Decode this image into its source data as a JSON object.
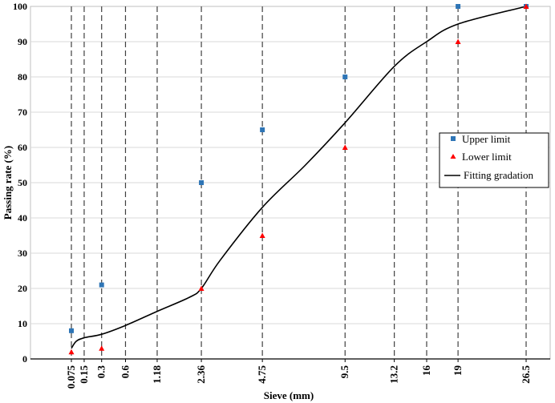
{
  "chart_data": {
    "type": "scatter",
    "xlabel": "Sieve (mm)",
    "ylabel": "Passing rate (%)",
    "ylim": [
      0,
      100
    ],
    "yticks": [
      0,
      10,
      20,
      30,
      40,
      50,
      60,
      70,
      80,
      90,
      100
    ],
    "x_scale": "power-0.45",
    "sieves": [
      "0.075",
      "0.15",
      "0.3",
      "0.6",
      "1.18",
      "2.36",
      "4.75",
      "9.5",
      "13.2",
      "16",
      "19",
      "26.5"
    ],
    "sieve_values": [
      0.075,
      0.15,
      0.3,
      0.6,
      1.18,
      2.36,
      4.75,
      9.5,
      13.2,
      16,
      19,
      26.5
    ],
    "grid": "vertical dashed lines at sieves, horizontal light gridlines",
    "legend_position": "right",
    "series": [
      {
        "name": "Upper limit",
        "marker": "square",
        "color": "#2e75b6",
        "x": [
          0.075,
          0.3,
          2.36,
          4.75,
          9.5,
          19,
          26.5
        ],
        "y": [
          8,
          21,
          50,
          65,
          80,
          100,
          100
        ]
      },
      {
        "name": "Lower limit",
        "marker": "triangle",
        "color": "#ff0000",
        "x": [
          0.075,
          0.3,
          2.36,
          4.75,
          9.5,
          19,
          26.5
        ],
        "y": [
          2,
          3,
          20,
          35,
          60,
          90,
          100
        ]
      },
      {
        "name": "Fitting gradation",
        "marker": "line",
        "color": "#000000",
        "x": [
          0.075,
          0.1,
          0.15,
          0.3,
          0.6,
          1.18,
          2.0,
          2.36,
          3.0,
          4.75,
          7.0,
          9.5,
          13.2,
          16,
          19,
          26.5
        ],
        "y": [
          3,
          5,
          6,
          7,
          9.5,
          13.5,
          17.5,
          20,
          28,
          43,
          55,
          67,
          83,
          90,
          95,
          100
        ]
      }
    ]
  }
}
